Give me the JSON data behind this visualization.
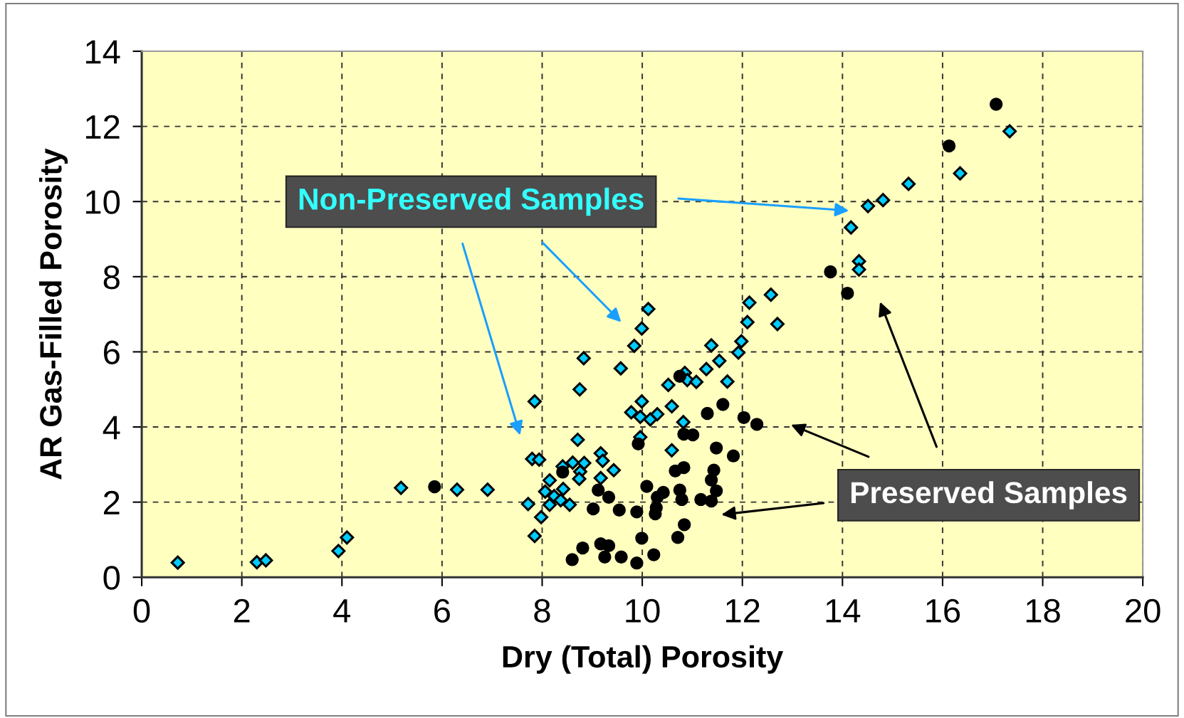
{
  "chart_data": {
    "type": "scatter",
    "xlabel": "Dry (Total) Porosity",
    "ylabel": "AR Gas-Filled Porosity",
    "xlim": [
      0,
      20
    ],
    "ylim": [
      0,
      14
    ],
    "xticks": [
      0,
      2,
      4,
      6,
      8,
      10,
      12,
      14,
      16,
      18,
      20
    ],
    "yticks": [
      0,
      2,
      4,
      6,
      8,
      10,
      12,
      14
    ],
    "grid": true,
    "series": [
      {
        "color": "#00ccff",
        "marker": "diamond",
        "x": [
          0.72,
          2.3,
          2.48,
          3.93,
          4.1,
          5.18,
          6.3,
          6.91,
          7.72,
          7.85,
          7.98,
          7.8,
          7.94,
          7.85,
          8.75,
          8.83,
          9.57,
          9.84,
          9.99,
          10.12,
          8.71,
          8.41,
          8.61,
          8.84,
          9.17,
          9.21,
          9.43,
          8.76,
          8.74,
          9.17,
          8.15,
          8.06,
          8.24,
          8.42,
          8.37,
          8.15,
          8.55,
          9.99,
          9.78,
          9.96,
          10.16,
          10.3,
          9.96,
          10.59,
          10.82,
          10.59,
          10.52,
          10.85,
          10.9,
          11.08,
          11.28,
          11.54,
          11.38,
          11.7,
          11.92,
          11.98,
          12.1,
          12.14,
          12.57,
          12.7,
          14.17,
          14.33,
          14.33,
          14.51,
          14.81,
          15.32,
          16.35,
          17.34
        ],
        "values": [
          0.39,
          0.4,
          0.45,
          0.7,
          1.06,
          2.38,
          2.33,
          2.33,
          1.95,
          1.1,
          1.6,
          3.15,
          3.13,
          4.68,
          5.0,
          5.83,
          5.56,
          6.16,
          6.62,
          7.14,
          3.66,
          2.95,
          3.05,
          3.04,
          3.3,
          3.1,
          2.85,
          2.81,
          2.62,
          2.64,
          2.58,
          2.28,
          2.16,
          2.35,
          2.05,
          1.93,
          1.93,
          4.68,
          4.39,
          4.27,
          4.2,
          4.34,
          3.73,
          3.38,
          4.13,
          4.55,
          5.12,
          5.44,
          5.25,
          5.2,
          5.54,
          5.76,
          6.17,
          5.21,
          5.98,
          6.28,
          6.79,
          7.31,
          7.52,
          6.74,
          9.31,
          8.41,
          8.19,
          9.88,
          10.04,
          10.47,
          10.75,
          11.87
        ]
      },
      {
        "color": "#000000",
        "marker": "circle",
        "x": [
          5.85,
          8.41,
          9.12,
          9.33,
          9.02,
          9.54,
          9.89,
          10.09,
          10.3,
          10.28,
          10.26,
          9.99,
          9.17,
          9.33,
          8.81,
          9.25,
          9.58,
          8.6,
          9.89,
          10.23,
          9.92,
          10.75,
          11.61,
          11.3,
          12.03,
          12.29,
          10.83,
          11.01,
          11.48,
          11.82,
          10.83,
          10.66,
          11.43,
          11.38,
          10.42,
          10.75,
          11.48,
          10.79,
          11.17,
          11.38,
          10.84,
          10.71,
          13.76,
          14.1,
          16.13,
          17.07
        ],
        "values": [
          2.41,
          2.8,
          2.32,
          2.13,
          1.82,
          1.79,
          1.74,
          2.42,
          2.13,
          1.85,
          1.69,
          1.04,
          0.89,
          0.84,
          0.78,
          0.54,
          0.54,
          0.47,
          0.38,
          0.6,
          3.55,
          5.35,
          4.6,
          4.36,
          4.25,
          4.07,
          3.81,
          3.79,
          3.44,
          3.23,
          2.92,
          2.83,
          2.85,
          2.59,
          2.26,
          2.32,
          2.3,
          2.07,
          2.07,
          2.03,
          1.4,
          1.06,
          8.13,
          7.56,
          11.48,
          12.59
        ]
      }
    ],
    "annotations": [
      "Non-Preserved Samples",
      "Preserved Samples"
    ]
  }
}
